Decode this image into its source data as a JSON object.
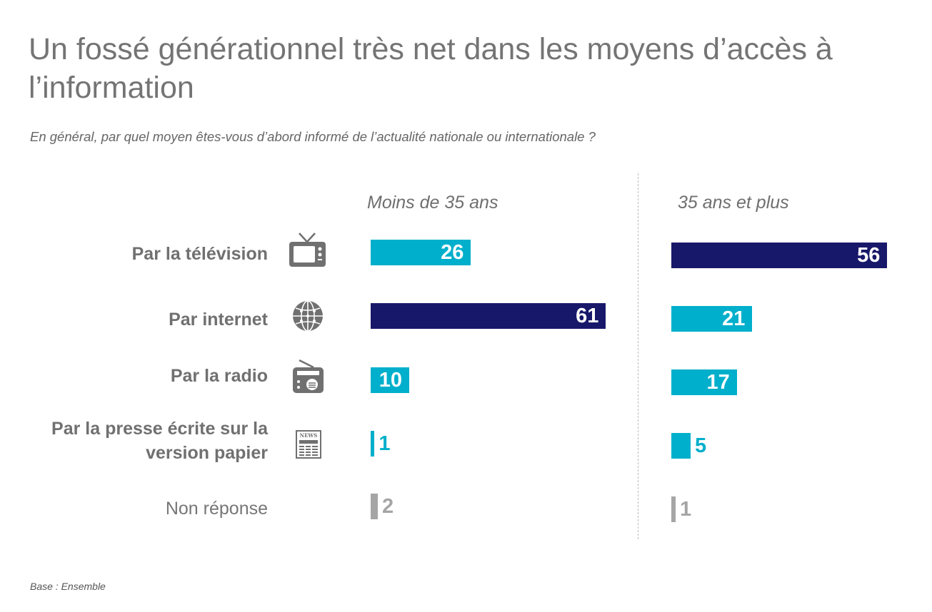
{
  "title": "Un fossé générationnel très net dans les moyens d’accès à l’information",
  "subtitle": "En général, par quel moyen êtes-vous d’abord informé de l’actualité nationale ou internationale ?",
  "base": "Base : Ensemble",
  "colors": {
    "light": "#00afcb",
    "dark": "#18186a",
    "gray": "#a5a5a5"
  },
  "chart_data": {
    "type": "bar",
    "orientation": "horizontal",
    "categories": [
      "Par la télévision",
      "Par internet",
      "Par la radio",
      "Par la presse écrite sur la version papier",
      "Non réponse"
    ],
    "series": [
      {
        "name": "Moins de 35 ans",
        "values": [
          26,
          61,
          10,
          1,
          2
        ],
        "highlight_index": 1
      },
      {
        "name": "35 ans et plus",
        "values": [
          56,
          21,
          17,
          5,
          1
        ],
        "highlight_index": 0
      }
    ],
    "icons": [
      "tv-icon",
      "globe-icon",
      "radio-icon",
      "newspaper-icon",
      ""
    ],
    "icon_text": {
      "newspaper": "NEWS"
    }
  }
}
